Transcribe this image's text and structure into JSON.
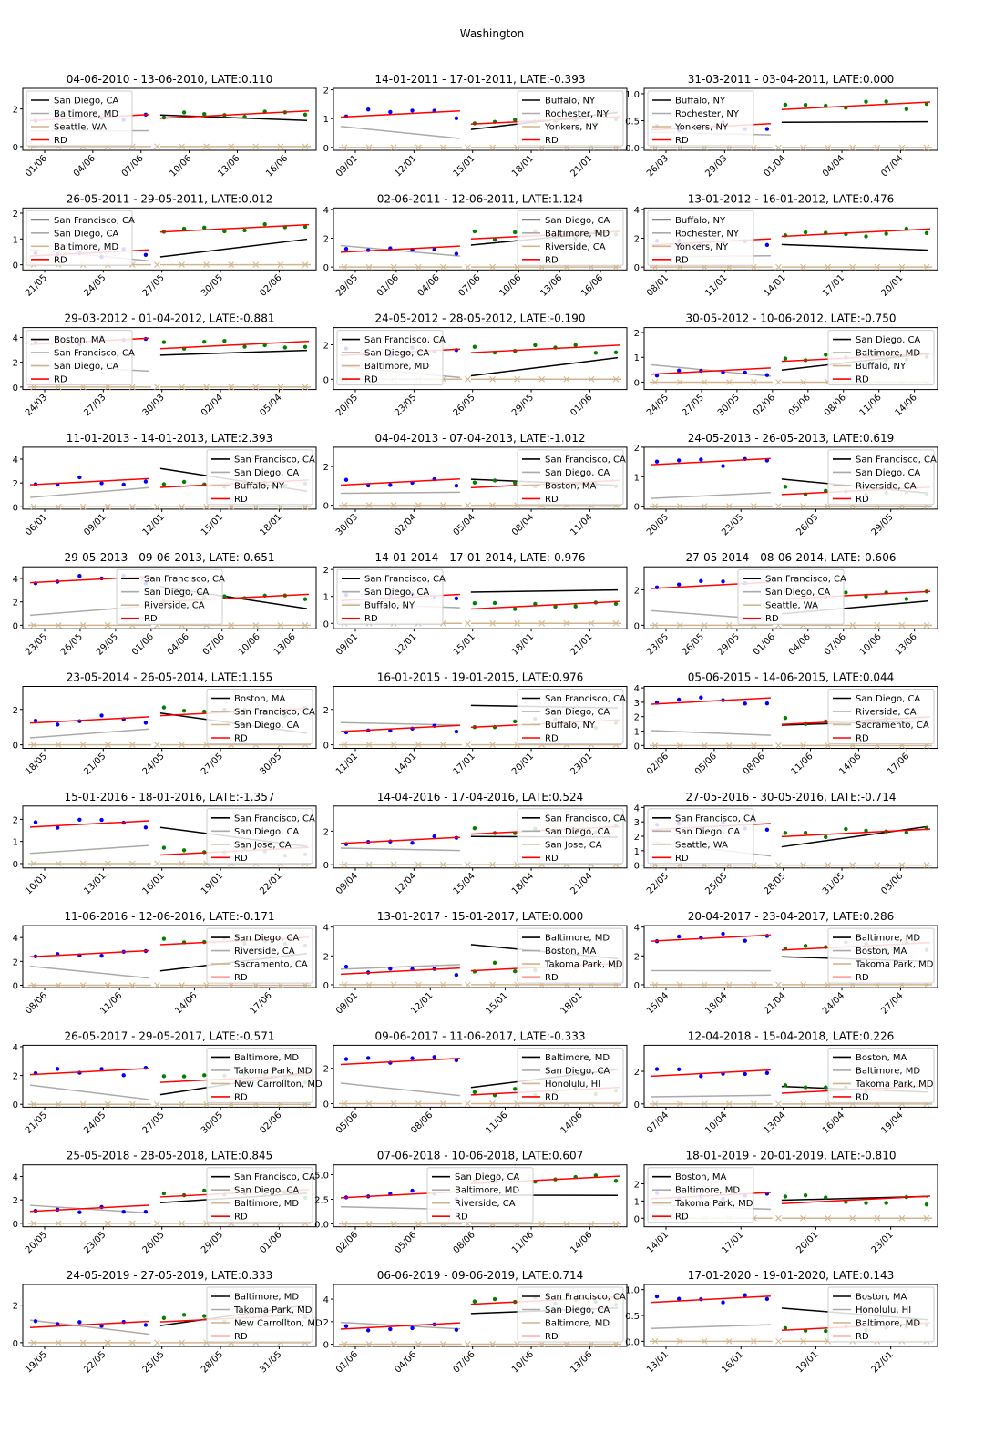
{
  "suptitle": "Washington",
  "colors": {
    "left_dots": "#0000ff",
    "right_dots": "#008000",
    "rd": "#ff0000",
    "series1": "#000000",
    "series2": "#aaaaaa",
    "series3": "#d2b48c"
  },
  "chart_data": [
    {
      "type": "line",
      "title": "04-06-2010 - 13-06-2010, LATE:0.110",
      "xticks": [
        "01/06",
        "04/06",
        "07/06",
        "10/06",
        "13/06",
        "16/06"
      ],
      "yticks": [
        "0",
        "2"
      ],
      "ylim": [
        -0.2,
        3.1
      ],
      "legend": [
        "San Diego, CA",
        "Baltimore, MD",
        "Seattle, WA",
        "RD"
      ],
      "legend_loc": "upper left"
    },
    {
      "type": "line",
      "title": "14-01-2011 - 17-01-2011, LATE:-0.393",
      "xticks": [
        "09/01",
        "12/01",
        "15/01",
        "18/01",
        "21/01"
      ],
      "yticks": [
        "0",
        "1",
        "2"
      ],
      "ylim": [
        -0.1,
        2.05
      ],
      "legend": [
        "Buffalo, NY",
        "Rochester, NY",
        "Yonkers, NY",
        "RD"
      ],
      "legend_loc": "upper right"
    },
    {
      "type": "line",
      "title": "31-03-2011 - 03-04-2011, LATE:0.000",
      "xticks": [
        "26/03",
        "29/03",
        "01/04",
        "04/04",
        "07/04"
      ],
      "yticks": [
        "0.0",
        "0.5",
        "1.0"
      ],
      "ylim": [
        -0.05,
        1.1
      ],
      "legend": [
        "Buffalo, NY",
        "Rochester, NY",
        "Yonkers, NY",
        "RD"
      ],
      "legend_loc": "upper left"
    },
    {
      "type": "line",
      "title": "26-05-2011 - 29-05-2011, LATE:0.012",
      "xticks": [
        "21/05",
        "24/05",
        "27/05",
        "30/05",
        "02/06"
      ],
      "yticks": [
        "0",
        "1",
        "2"
      ],
      "ylim": [
        -0.2,
        2.2
      ],
      "legend": [
        "San Francisco, CA",
        "San Diego, CA",
        "Baltimore, MD",
        "RD"
      ],
      "legend_loc": "upper left"
    },
    {
      "type": "line",
      "title": "02-06-2011 - 12-06-2011, LATE:1.124",
      "xticks": [
        "29/05",
        "01/06",
        "04/06",
        "07/06",
        "10/06",
        "13/06",
        "16/06"
      ],
      "yticks": [
        "0",
        "2",
        "4"
      ],
      "ylim": [
        -0.2,
        4.1
      ],
      "legend": [
        "San Diego, CA",
        "Baltimore, MD",
        "Riverside, CA",
        "RD"
      ],
      "legend_loc": "upper right"
    },
    {
      "type": "line",
      "title": "13-01-2012 - 16-01-2012, LATE:0.476",
      "xticks": [
        "08/01",
        "11/01",
        "14/01",
        "17/01",
        "20/01"
      ],
      "yticks": [
        "0",
        "2",
        "4"
      ],
      "ylim": [
        -0.2,
        4.1
      ],
      "legend": [
        "Buffalo, NY",
        "Rochester, NY",
        "Yonkers, NY",
        "RD"
      ],
      "legend_loc": "upper left"
    },
    {
      "type": "line",
      "title": "29-03-2012 - 01-04-2012, LATE:-0.881",
      "xticks": [
        "24/03",
        "27/03",
        "30/03",
        "02/04",
        "05/04"
      ],
      "yticks": [
        "0",
        "2",
        "4"
      ],
      "ylim": [
        -0.2,
        4.8
      ],
      "legend": [
        "Boston, MA",
        "San Francisco, CA",
        "San Diego, CA",
        "RD"
      ],
      "legend_loc": "upper left"
    },
    {
      "type": "line",
      "title": "24-05-2012 - 28-05-2012, LATE:-0.190",
      "xticks": [
        "20/05",
        "23/05",
        "26/05",
        "29/05",
        "01/06"
      ],
      "yticks": [
        "0",
        "2"
      ],
      "ylim": [
        -0.6,
        3.0
      ],
      "legend": [
        "San Francisco, CA",
        "San Diego, CA",
        "Baltimore, MD",
        "RD"
      ],
      "legend_loc": "upper left"
    },
    {
      "type": "line",
      "title": "30-05-2012 - 10-06-2012, LATE:-0.750",
      "xticks": [
        "24/05",
        "27/05",
        "30/05",
        "02/06",
        "05/06",
        "08/06",
        "11/06",
        "14/06"
      ],
      "yticks": [
        "0",
        "1",
        "2"
      ],
      "ylim": [
        -0.3,
        2.2
      ],
      "legend": [
        "San Diego, CA",
        "Baltimore, MD",
        "Buffalo, NY",
        "RD"
      ],
      "legend_loc": "upper right"
    },
    {
      "type": "line",
      "title": "11-01-2013 - 14-01-2013, LATE:2.393",
      "xticks": [
        "06/01",
        "09/01",
        "12/01",
        "15/01",
        "18/01"
      ],
      "yticks": [
        "0",
        "2",
        "4"
      ],
      "ylim": [
        -0.2,
        5.0
      ],
      "legend": [
        "San Francisco, CA",
        "San Diego, CA",
        "Buffalo, NY",
        "RD"
      ],
      "legend_loc": "upper right"
    },
    {
      "type": "line",
      "title": "04-04-2013 - 07-04-2013, LATE:-1.012",
      "xticks": [
        "30/03",
        "02/04",
        "05/04",
        "08/04",
        "11/04"
      ],
      "yticks": [
        "0",
        "2"
      ],
      "ylim": [
        -0.2,
        3.0
      ],
      "legend": [
        "San Francisco, CA",
        "San Diego, CA",
        "Boston, MA",
        "RD"
      ],
      "legend_loc": "upper right"
    },
    {
      "type": "line",
      "title": "24-05-2013 - 26-05-2013, LATE:0.619",
      "xticks": [
        "20/05",
        "23/05",
        "26/05",
        "29/05"
      ],
      "yticks": [
        "0",
        "1",
        "2"
      ],
      "ylim": [
        -0.1,
        2.0
      ],
      "legend": [
        "San Francisco, CA",
        "San Diego, CA",
        "Riverside, CA",
        "RD"
      ],
      "legend_loc": "upper right"
    },
    {
      "type": "line",
      "title": "29-05-2013 - 09-06-2013, LATE:-0.651",
      "xticks": [
        "23/05",
        "26/05",
        "29/05",
        "01/06",
        "04/06",
        "07/06",
        "10/06",
        "13/06"
      ],
      "yticks": [
        "0",
        "2",
        "4"
      ],
      "ylim": [
        -0.3,
        5.0
      ],
      "legend": [
        "San Francisco, CA",
        "San Diego, CA",
        "Riverside, CA",
        "RD"
      ],
      "legend_loc": "upper center"
    },
    {
      "type": "line",
      "title": "14-01-2014 - 17-01-2014, LATE:-0.976",
      "xticks": [
        "09/01",
        "12/01",
        "15/01",
        "18/01",
        "21/01"
      ],
      "yticks": [
        "0",
        "1",
        "2"
      ],
      "ylim": [
        -0.2,
        2.1
      ],
      "legend": [
        "San Francisco, CA",
        "San Diego, CA",
        "Buffalo, NY",
        "RD"
      ],
      "legend_loc": "upper left"
    },
    {
      "type": "line",
      "title": "27-05-2014 - 08-06-2014, LATE:-0.606",
      "xticks": [
        "23/05",
        "26/05",
        "29/05",
        "01/06",
        "04/06",
        "07/06",
        "10/06",
        "13/06"
      ],
      "yticks": [
        "0",
        "2"
      ],
      "ylim": [
        -0.2,
        3.3
      ],
      "legend": [
        "San Francisco, CA",
        "San Diego, CA",
        "Seattle, WA",
        "RD"
      ],
      "legend_loc": "upper center"
    },
    {
      "type": "line",
      "title": "23-05-2014 - 26-05-2014, LATE:1.155",
      "xticks": [
        "18/05",
        "21/05",
        "24/05",
        "27/05",
        "30/05"
      ],
      "yticks": [
        "0",
        "2"
      ],
      "ylim": [
        -0.2,
        3.3
      ],
      "legend": [
        "Boston, MA",
        "San Francisco, CA",
        "San Diego, CA",
        "RD"
      ],
      "legend_loc": "upper right"
    },
    {
      "type": "line",
      "title": "16-01-2015 - 19-01-2015, LATE:0.976",
      "xticks": [
        "11/01",
        "14/01",
        "17/01",
        "20/01",
        "23/01"
      ],
      "yticks": [
        "0",
        "2"
      ],
      "ylim": [
        -0.2,
        3.3
      ],
      "legend": [
        "San Francisco, CA",
        "San Diego, CA",
        "Buffalo, NY",
        "RD"
      ],
      "legend_loc": "upper right"
    },
    {
      "type": "line",
      "title": "05-06-2015 - 14-06-2015, LATE:0.044",
      "xticks": [
        "02/06",
        "05/06",
        "08/06",
        "11/06",
        "14/06",
        "17/06"
      ],
      "yticks": [
        "0",
        "1",
        "2",
        "3",
        "4"
      ],
      "ylim": [
        -0.2,
        4.1
      ],
      "legend": [
        "San Diego, CA",
        "Riverside, CA",
        "Sacramento, CA",
        "RD"
      ],
      "legend_loc": "upper right"
    },
    {
      "type": "line",
      "title": "15-01-2016 - 18-01-2016, LATE:-1.357",
      "xticks": [
        "10/01",
        "13/01",
        "16/01",
        "19/01",
        "22/01"
      ],
      "yticks": [
        "0",
        "1",
        "2"
      ],
      "ylim": [
        -0.2,
        2.6
      ],
      "legend": [
        "San Francisco, CA",
        "San Diego, CA",
        "San Jose, CA",
        "RD"
      ],
      "legend_loc": "upper right"
    },
    {
      "type": "line",
      "title": "14-04-2016 - 17-04-2016, LATE:0.524",
      "xticks": [
        "09/04",
        "12/04",
        "15/04",
        "18/04",
        "21/04"
      ],
      "yticks": [
        "0",
        "2"
      ],
      "ylim": [
        -0.2,
        3.5
      ],
      "legend": [
        "San Francisco, CA",
        "San Diego, CA",
        "San Jose, CA",
        "RD"
      ],
      "legend_loc": "upper right"
    },
    {
      "type": "line",
      "title": "27-05-2016 - 30-05-2016, LATE:-0.714",
      "xticks": [
        "22/05",
        "25/05",
        "28/05",
        "31/05",
        "03/06"
      ],
      "yticks": [
        "0",
        "1",
        "2",
        "3",
        "4"
      ],
      "ylim": [
        -0.2,
        4.1
      ],
      "legend": [
        "San Francisco, CA",
        "San Diego, CA",
        "Seattle, WA",
        "RD"
      ],
      "legend_loc": "upper left"
    },
    {
      "type": "line",
      "title": "11-06-2016 - 12-06-2016, LATE:-0.171",
      "xticks": [
        "08/06",
        "11/06",
        "14/06",
        "17/06"
      ],
      "yticks": [
        "0",
        "2",
        "4"
      ],
      "ylim": [
        -0.2,
        5.0
      ],
      "legend": [
        "San Diego, CA",
        "Riverside, CA",
        "Sacramento, CA",
        "RD"
      ],
      "legend_loc": "upper right"
    },
    {
      "type": "line",
      "title": "13-01-2017 - 15-01-2017, LATE:0.000",
      "xticks": [
        "09/01",
        "12/01",
        "15/01",
        "18/01"
      ],
      "yticks": [
        "0",
        "2",
        "4"
      ],
      "ylim": [
        -0.2,
        4.1
      ],
      "legend": [
        "Baltimore, MD",
        "Boston, MA",
        "Takoma Park, MD",
        "RD"
      ],
      "legend_loc": "upper right"
    },
    {
      "type": "line",
      "title": "20-04-2017 - 23-04-2017, LATE:0.286",
      "xticks": [
        "15/04",
        "18/04",
        "21/04",
        "24/04",
        "27/04"
      ],
      "yticks": [
        "0",
        "2",
        "4"
      ],
      "ylim": [
        -0.2,
        4.1
      ],
      "legend": [
        "Baltimore, MD",
        "Boston, MA",
        "Takoma Park, MD",
        "RD"
      ],
      "legend_loc": "upper right"
    },
    {
      "type": "line",
      "title": "26-05-2017 - 29-05-2017, LATE:-0.571",
      "xticks": [
        "21/05",
        "24/05",
        "27/05",
        "30/05",
        "02/06"
      ],
      "yticks": [
        "0",
        "2",
        "4"
      ],
      "ylim": [
        -0.2,
        4.1
      ],
      "legend": [
        "Baltimore, MD",
        "Takoma Park, MD",
        "New Carrollton, MD",
        "RD"
      ],
      "legend_loc": "upper right"
    },
    {
      "type": "line",
      "title": "09-06-2017 - 11-06-2017, LATE:-0.333",
      "xticks": [
        "05/06",
        "08/06",
        "11/06",
        "14/06"
      ],
      "yticks": [
        "0",
        "2"
      ],
      "ylim": [
        -0.2,
        3.3
      ],
      "legend": [
        "Baltimore, MD",
        "San Diego, CA",
        "Honolulu, HI",
        "RD"
      ],
      "legend_loc": "upper right"
    },
    {
      "type": "line",
      "title": "12-04-2018 - 15-04-2018, LATE:0.226",
      "xticks": [
        "07/04",
        "10/04",
        "13/04",
        "16/04",
        "19/04"
      ],
      "yticks": [
        "0",
        "2"
      ],
      "ylim": [
        -0.2,
        3.6
      ],
      "legend": [
        "Boston, MA",
        "Baltimore, MD",
        "Takoma Park, MD",
        "RD"
      ],
      "legend_loc": "upper right"
    },
    {
      "type": "line",
      "title": "25-05-2018 - 28-05-2018, LATE:0.845",
      "xticks": [
        "20/05",
        "23/05",
        "26/05",
        "29/05",
        "01/06"
      ],
      "yticks": [
        "0",
        "2",
        "4"
      ],
      "ylim": [
        -0.3,
        5.0
      ],
      "legend": [
        "San Francisco, CA",
        "San Diego, CA",
        "Baltimore, MD",
        "RD"
      ],
      "legend_loc": "upper right"
    },
    {
      "type": "line",
      "title": "07-06-2018 - 10-06-2018, LATE:0.607",
      "xticks": [
        "02/06",
        "05/06",
        "08/06",
        "11/06",
        "14/06"
      ],
      "yticks": [
        "0.0",
        "2.5",
        "5.0"
      ],
      "ylim": [
        -0.3,
        6.0
      ],
      "legend": [
        "San Diego, CA",
        "Baltimore, MD",
        "Riverside, CA",
        "RD"
      ],
      "legend_loc": "upper center"
    },
    {
      "type": "line",
      "title": "18-01-2019 - 20-01-2019, LATE:-0.810",
      "xticks": [
        "14/01",
        "17/01",
        "20/01",
        "23/01"
      ],
      "yticks": [
        "0",
        "1",
        "2"
      ],
      "ylim": [
        -0.5,
        3.1
      ],
      "legend": [
        "Boston, MA",
        "Baltimore, MD",
        "Takoma Park, MD",
        "RD"
      ],
      "legend_loc": "upper left"
    },
    {
      "type": "line",
      "title": "24-05-2019 - 27-05-2019, LATE:0.333",
      "xticks": [
        "19/05",
        "22/05",
        "25/05",
        "28/05",
        "31/05"
      ],
      "yticks": [
        "0",
        "2"
      ],
      "ylim": [
        -0.2,
        3.1
      ],
      "legend": [
        "Baltimore, MD",
        "Takoma Park, MD",
        "New Carrollton, MD",
        "RD"
      ],
      "legend_loc": "upper right"
    },
    {
      "type": "line",
      "title": "06-06-2019 - 09-06-2019, LATE:0.714",
      "xticks": [
        "01/06",
        "04/06",
        "07/06",
        "10/06",
        "13/06"
      ],
      "yticks": [
        "0",
        "2",
        "4"
      ],
      "ylim": [
        -0.2,
        5.3
      ],
      "legend": [
        "San Francisco, CA",
        "San Diego, CA",
        "Baltimore, MD",
        "RD"
      ],
      "legend_loc": "upper right"
    },
    {
      "type": "line",
      "title": "17-01-2020 - 19-01-2020, LATE:0.143",
      "xticks": [
        "13/01",
        "16/01",
        "19/01",
        "22/01"
      ],
      "yticks": [
        "0.0",
        "0.5",
        "1.0"
      ],
      "ylim": [
        -0.1,
        1.1
      ],
      "legend": [
        "Boston, MA",
        "Honolulu, HI",
        "Baltimore, MD",
        "RD"
      ],
      "legend_loc": "upper right"
    }
  ]
}
